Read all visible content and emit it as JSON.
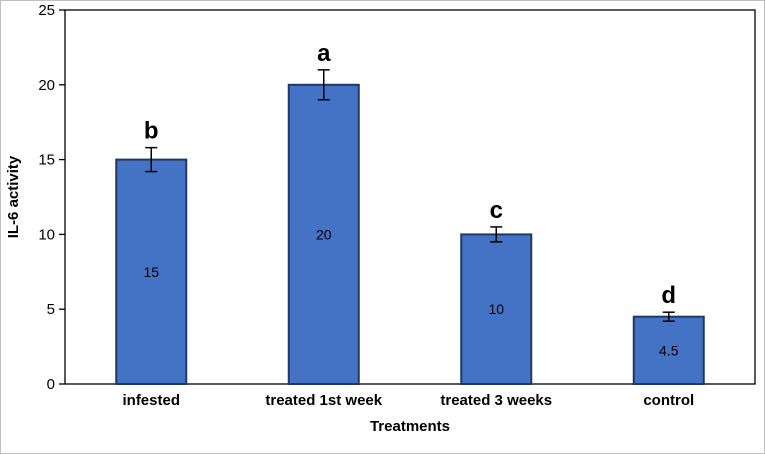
{
  "chart_data": {
    "type": "bar",
    "title": "",
    "xlabel": "Treatments",
    "ylabel": "IL-6 activity",
    "categories": [
      "infested",
      "treated 1st week",
      "treated 3 weeks",
      "control"
    ],
    "values": [
      15,
      20,
      10,
      4.5
    ],
    "value_labels": [
      "15",
      "20",
      "10",
      "4.5"
    ],
    "sig_letters": [
      "b",
      "a",
      "c",
      "d"
    ],
    "errors": [
      0.8,
      1.0,
      0.5,
      0.3
    ],
    "ylim": [
      0,
      25
    ],
    "yticks": [
      0,
      5,
      10,
      15,
      20,
      25
    ],
    "grid": false,
    "legend": false,
    "bar_color": "#4472C4",
    "bar_border_color": "#1F3864",
    "axis_color": "#000000",
    "error_bar_color": "#000000",
    "text_color": "#000000",
    "background_color": "#ffffff"
  }
}
